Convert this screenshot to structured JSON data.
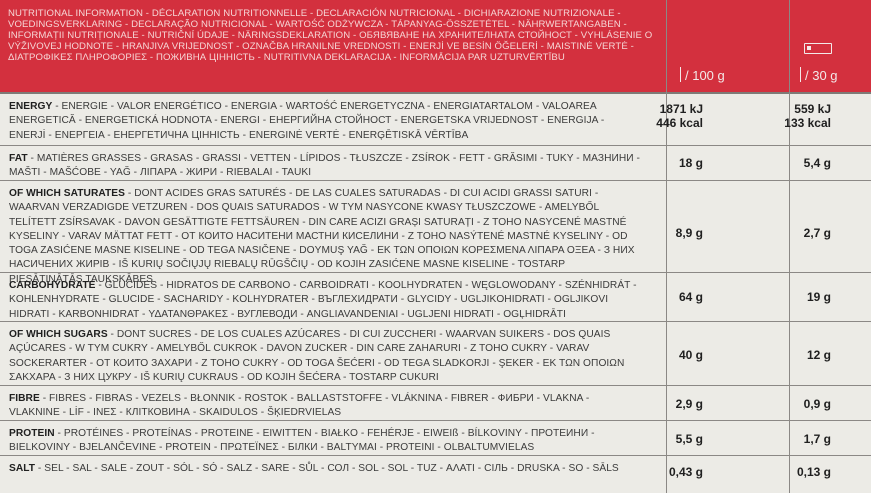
{
  "header": {
    "title_block": "NUTRITIONAL INFORMATION - DÉCLARATION NUTRITIONNELLE - DECLARACIÓN NUTRICIONAL - DICHIARAZIONE NUTRIZIONALE - VOEDINGSVERKLARING - DECLARAÇÃO NUTRICIONAL - WARTOŚĆ ODŻYWCZA - TÁPANYAG-ÖSSZETÉTEL - NÄHRWERTANGABEN - INFORMAȚII NUTRIȚIONALE - NUTRIČNÍ ÚDAJE - NÄRINGSDEKLARATION - ОБЯВЯВАНЕ НА ХРАНИТЕЛНАТА СТОЙНОСТ - VYHLÁSENIE O VÝŽIVOVEJ HODNOTE - HRANJIVA VRIJEDNOST - OZNAČBA HRANILNE VREDNOSTI - ENERJİ VE BESİN ÖĞELERİ - MAISTINĖ VERTĖ - ΔΙΑΤΡΟΦΙΚΕΣ ΠΛΗΡΟΦΟΡΙΕΣ - ПОЖИВНА ЦІННІСТЬ - NUTRITIVNA DEKLARACIJA - INFORMĀCIJA PAR UZTURVĒRTĪBU",
    "col_100": "/ 100 g",
    "col_30": "/ 30 g",
    "bar_icon": "bar-icon"
  },
  "rows": [
    {
      "label": "ENERGY",
      "text": " - ENERGIE - VALOR ENERGÉTICO - ENERGIA - WARTOŚĆ ENERGETYCZNA - ENERGIATARTALOM - VALOAREA ENERGETICĂ - ENERGETICKÁ HODNOTA - ENERGI - ЕНЕРГИЙНА СТОЙНОСТ - ENERGETSKA VRIJEDNOST - ENERGIJA - ENERJİ - ΕΝΕΡΓΕΙΑ - ЕНЕРГЕТИЧНА ЦІННІСТЬ - ENERGINĖ VERTĖ - ENERĢĒTISKĀ VĒRTĪBA",
      "v100a": "1871 kJ",
      "v100b": "446 kcal",
      "v30a": "559 kJ",
      "v30b": "133 kcal"
    },
    {
      "label": "FAT",
      "text": " - MATIÈRES GRASSES - GRASAS - GRASSI - VETTEN - LÍPIDOS - TŁUSZCZE - ZSÍROK - FETT - GRĂSIMI - TUKY - МАЗНИНИ - MAŠTI - MAŠĆOBE - YAĞ - ЛІПАРА - ЖИРИ - RIEBALAI - TAUKI",
      "v100a": "18 g",
      "v30a": "5,4 g"
    },
    {
      "label": "OF WHICH SATURATES",
      "text": " - DONT ACIDES GRAS SATURÉS - DE LAS CUALES SATURADAS - DI CUI ACIDI GRASSI SATURI - WAARVAN VERZADIGDE VETZUREN - DOS QUAIS SATURADOS - W TYM NASYCONE KWASY TŁUSZCZOWE - AMELYBŐL TELÍTETT ZSÍRSAVAK - DAVON GESÄTTIGTE FETTSÄUREN - DIN CARE ACIZI GRAȘI SATURAȚI - Z TOHO NASYCENÉ MASTNÉ KYSELINY - VARAV MÄTTAT FETT - ОТ КОИТО НАСИТЕНИ МАСТНИ КИСЕЛИНИ - Z TOHO NASÝTENÉ MASTNÉ KYSELINY - OD TOGA ZASIĆENE MASNE KISELINE - OD TEGA NASIČENE - DOYMUŞ YAĞ - ΕΚ ΤΩΝ ΟΠΟΙΩΝ ΚΟΡΕΣΜΕΝΑ ΛΙΠΑΡΑ ΟΞΕΑ - З НИХ НАСИЧЕНИХ ЖИРІВ - IŠ KURIŲ SOČIŲJŲ RIEBALŲ RŪGŠČIŲ - OD KOJIH ZASIĆENE MASNE KISELINE - TOSTARP PIESĀTINĀTĀS TAUKSKĀBES",
      "v100a": "8,9 g",
      "v30a": "2,7 g"
    },
    {
      "label": "CARBOHYDRATE",
      "text": " - GLUCIDES - HIDRATOS DE CARBONO - CARBOIDRATI - KOOLHYDRATEN - WĘGLOWODANY - SZÉNHIDRÁT - KOHLENHYDRATE - GLUCIDE - SACHARIDY - KOLHYDRATER - ВЪГЛЕХИДРАТИ - GLYCIDY - UGLJIKOHIDRATI - OGLJIKOVI HIDRATI - KARBONHIDRAT - ΥΔΑΤΑΝΘΡΑΚΕΣ - ВУГЛЕВОДИ - ANGLIAVANDENIAI - UGLJENI HIDRATI - OGĻHIDRĀTI",
      "v100a": "64 g",
      "v30a": "19 g"
    },
    {
      "label": "OF WHICH SUGARS",
      "text": " - DONT SUCRES - DE LOS CUALES AZÚCARES - DI CUI ZUCCHERI - WAARVAN SUIKERS - DOS QUAIS AÇÚCARES - W TYM CUKRY - AMELYBŐL CUKROK - DAVON ZUCKER - DIN CARE ZAHARURI - Z TOHO CUKRY - VARAV SOCKERARTER - ОТ КОИТО ЗАХАРИ - Z TOHO CUKRY - OD TOGA ŠEĆERI - OD TEGA SLADKORJI - ŞEKER - ΕΚ ΤΩΝ ΟΠΟΙΩΝ ΣΑΚΧΑΡΑ - З НИХ ЦУКРУ - IŠ KURIŲ CUKRAUS - OD KOJIH ŠEĆERA - TOSTARP CUKURI",
      "v100a": "40 g",
      "v30a": "12 g"
    },
    {
      "label": "FIBRE",
      "text": " - FIBRES - FIBRAS - VEZELS - BŁONNIK - ROSTOK - BALLASTSTOFFE - VLÁKNINA - FIBRER - ФИБРИ - VLAKNA - VLAKNINE - LİF - ΙΝΕΣ - КЛІТКОВИНА - SKAIDULOS - ŠĶIEDRVIELAS",
      "v100a": "2,9 g",
      "v30a": "0,9 g"
    },
    {
      "label": "PROTEIN",
      "text": " - PROTÉINES - PROTEÍNAS - PROTEINE - EIWITTEN - BIAŁKO - FEHÉRJE - EIWEIß - BÍLKOVINY - ПРОТЕИНИ - BIELKOVINY - BJELANČEVINE - PROTEIN - ΠΡΩΤΕΪΝΕΣ - БІЛКИ - BALTYMAI - PROTEINI - OLBALTUMVIELAS",
      "v100a": "5,5 g",
      "v30a": "1,7 g"
    },
    {
      "label": "SALT",
      "text": " - SEL - SAL - SALE - ZOUT - SÓL - SÓ - SALZ - SARE - SŮL - СОЛ - SOL - SOL - TUZ - ΑΛΑΤΙ - СІЛЬ - DRUSKA - SO - SĀLS",
      "v100a": "0,43 g",
      "v30a": "0,13 g"
    }
  ]
}
